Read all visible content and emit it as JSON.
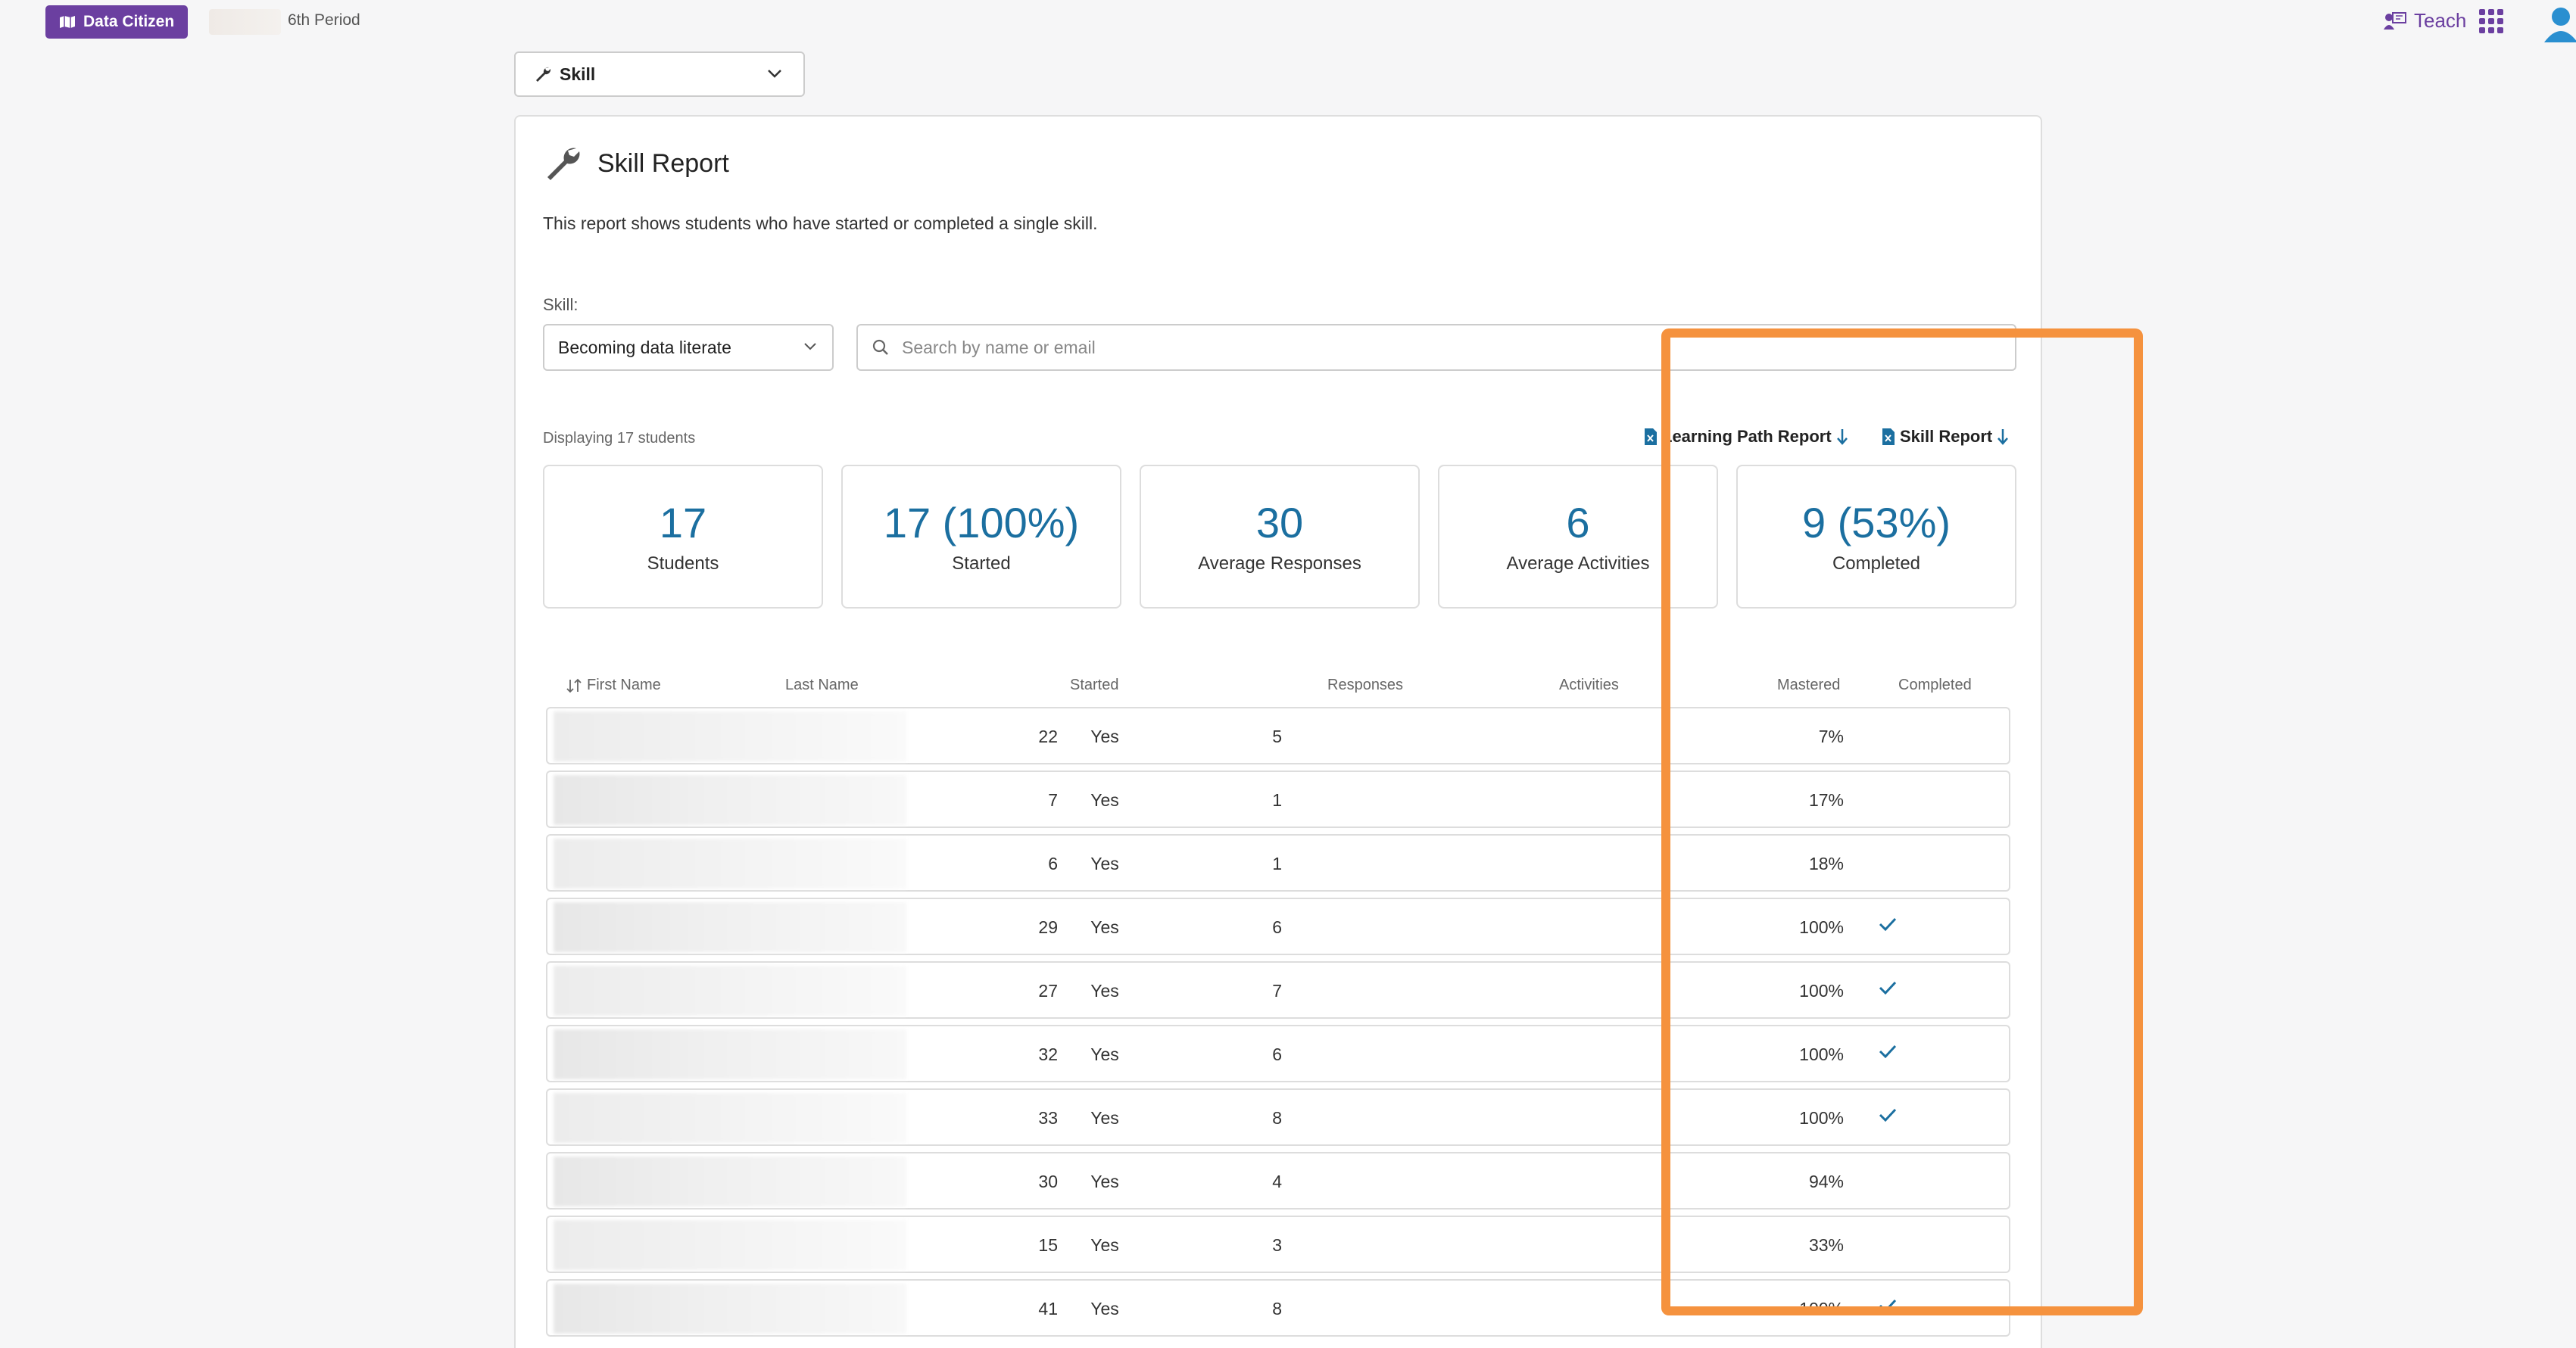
{
  "topbar": {
    "app_name": "Data Citizen",
    "period": "6th Period",
    "teach_label": "Teach"
  },
  "report_selector": {
    "value": "Skill"
  },
  "card": {
    "title": "Skill Report",
    "description": "This report shows students who have started or completed a single skill."
  },
  "filters": {
    "skill_label": "Skill:",
    "skill_value": "Becoming data literate",
    "search_placeholder": "Search by name or email"
  },
  "summary": {
    "displaying": "Displaying 17 students",
    "download_lp": "Learning Path Report",
    "download_skill": "Skill Report"
  },
  "stats": [
    {
      "value": "17",
      "label": "Students"
    },
    {
      "value": "17 (100%)",
      "label": "Started"
    },
    {
      "value": "30",
      "label": "Average Responses"
    },
    {
      "value": "6",
      "label": "Average Activities"
    },
    {
      "value": "9 (53%)",
      "label": "Completed"
    }
  ],
  "table": {
    "headers": {
      "first_name": "First Name",
      "last_name": "Last Name",
      "started": "Started",
      "responses": "Responses",
      "activities": "Activities",
      "mastered": "Mastered",
      "completed": "Completed"
    },
    "rows": [
      {
        "started": "Yes",
        "responses": "22",
        "activities": "5",
        "mastered": "7%",
        "completed": false
      },
      {
        "started": "Yes",
        "responses": "7",
        "activities": "1",
        "mastered": "17%",
        "completed": false
      },
      {
        "started": "Yes",
        "responses": "6",
        "activities": "1",
        "mastered": "18%",
        "completed": false
      },
      {
        "started": "Yes",
        "responses": "29",
        "activities": "6",
        "mastered": "100%",
        "completed": true
      },
      {
        "started": "Yes",
        "responses": "27",
        "activities": "7",
        "mastered": "100%",
        "completed": true
      },
      {
        "started": "Yes",
        "responses": "32",
        "activities": "6",
        "mastered": "100%",
        "completed": true
      },
      {
        "started": "Yes",
        "responses": "33",
        "activities": "8",
        "mastered": "100%",
        "completed": true
      },
      {
        "started": "Yes",
        "responses": "30",
        "activities": "4",
        "mastered": "94%",
        "completed": false
      },
      {
        "started": "Yes",
        "responses": "15",
        "activities": "3",
        "mastered": "33%",
        "completed": false
      },
      {
        "started": "Yes",
        "responses": "41",
        "activities": "8",
        "mastered": "100%",
        "completed": true
      }
    ]
  },
  "colors": {
    "brand_purple": "#6b3fa0",
    "stat_blue": "#1b6fa0",
    "highlight_orange": "#f5923e"
  }
}
